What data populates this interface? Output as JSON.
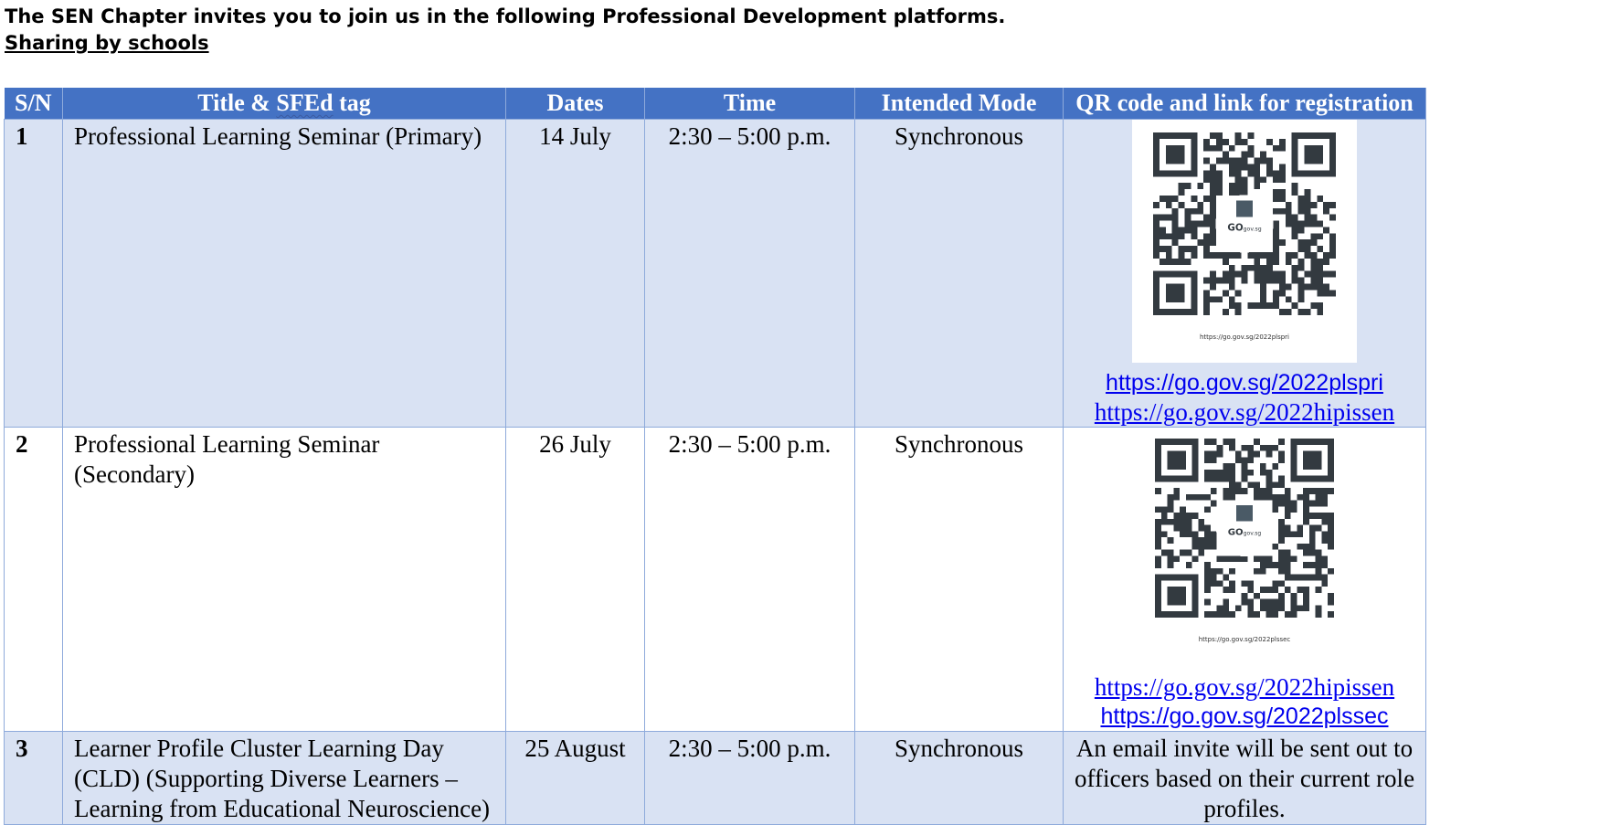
{
  "intro": {
    "heading": "The SEN Chapter invites you to join us in the following Professional Development platforms.",
    "subheading": "Sharing by schools"
  },
  "table": {
    "headers": {
      "sn": "S/N",
      "title_prefix": "Title & ",
      "title_tag": "SFEd",
      "title_suffix": " tag",
      "dates": "Dates",
      "time": "Time",
      "mode": "Intended Mode",
      "qr": "QR code and link for registration"
    },
    "rows": [
      {
        "sn": "1",
        "title": "Professional Learning Seminar (Primary)",
        "date": "14 July",
        "time": "2:30 – 5:00 p.m.",
        "mode": "Synchronous",
        "qr_brand": "GO",
        "qr_brand_sub": "gov.sg",
        "qr_caption": "https://go.gov.sg/2022plspri",
        "links": [
          "https://go.gov.sg/2022plspri",
          "https://go.gov.sg/2022hipissen"
        ]
      },
      {
        "sn": "2",
        "title": "Professional Learning Seminar (Secondary)",
        "date": "26 July",
        "time": "2:30 – 5:00 p.m.",
        "mode": "Synchronous",
        "qr_brand": "GO",
        "qr_brand_sub": "gov.sg",
        "qr_caption": "https://go.gov.sg/2022plssec",
        "links": [
          "https://go.gov.sg/2022hipissen",
          "https://go.gov.sg/2022plssec"
        ]
      },
      {
        "sn": "3",
        "title": "Learner Profile Cluster Learning Day (CLD) (Supporting Diverse Learners – Learning from Educational Neuroscience)",
        "date": "25 August",
        "time": "2:30 – 5:00 p.m.",
        "mode": "Synchronous",
        "note": "An email invite will be sent out to officers based on their current role profiles."
      }
    ]
  },
  "colors": {
    "header_bg": "#4472c4",
    "row_shade": "#d9e2f3",
    "border": "#8eaadb",
    "link": "#0000ee",
    "qr_module": "#333a40"
  },
  "icons": [
    "qr-code-icon",
    "go-gov-sg-logo-icon"
  ]
}
